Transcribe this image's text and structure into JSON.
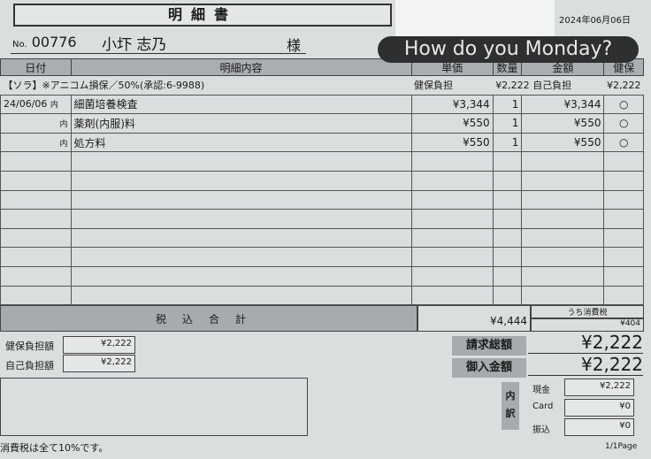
{
  "header": {
    "title": "明細書",
    "date": "2024年06月06日",
    "no_label": "No.",
    "number": "00776",
    "customer": "小圷 志乃",
    "honorific": "様"
  },
  "overlay": {
    "text": "How do you Monday?"
  },
  "table": {
    "columns": [
      "日付",
      "明細内容",
      "単価",
      "数量",
      "金額",
      "健保"
    ],
    "insurance_line": {
      "text": "【ソラ】※アニコム損保／50%(承認:6-9988)",
      "insured_label": "健保負担",
      "insured_amount": "¥2,222",
      "self_label": "自己負担",
      "self_amount": "¥2,222"
    },
    "rows": [
      {
        "date": "24/06/06",
        "type": "内",
        "item": "細菌培養検査",
        "unit_price": "¥3,344",
        "qty": "1",
        "amount": "¥3,344",
        "insured": "○"
      },
      {
        "date": "",
        "type": "内",
        "item": "薬剤(内服)料",
        "unit_price": "¥550",
        "qty": "1",
        "amount": "¥550",
        "insured": "○"
      },
      {
        "date": "",
        "type": "内",
        "item": "処方料",
        "unit_price": "¥550",
        "qty": "1",
        "amount": "¥550",
        "insured": "○"
      }
    ]
  },
  "totals": {
    "label": "税込合計",
    "amount": "¥4,444",
    "tax_label": "うち消費税",
    "tax": "¥404"
  },
  "burden": {
    "insured_label": "健保負担額",
    "insured": "¥2,222",
    "self_label": "自己負担額",
    "self": "¥2,222"
  },
  "billing": {
    "billed_label": "請求総額",
    "billed": "¥2,222",
    "received_label": "御入金額",
    "received": "¥2,222"
  },
  "breakdown": {
    "label_top": "内",
    "label_bottom": "訳",
    "items": [
      {
        "label": "現金",
        "value": "¥2,222"
      },
      {
        "label": "Card",
        "value": "¥0"
      },
      {
        "label": "振込",
        "value": "¥0"
      }
    ]
  },
  "footer": {
    "note": "消費税は全て10%です。",
    "page": "1/1Page"
  }
}
